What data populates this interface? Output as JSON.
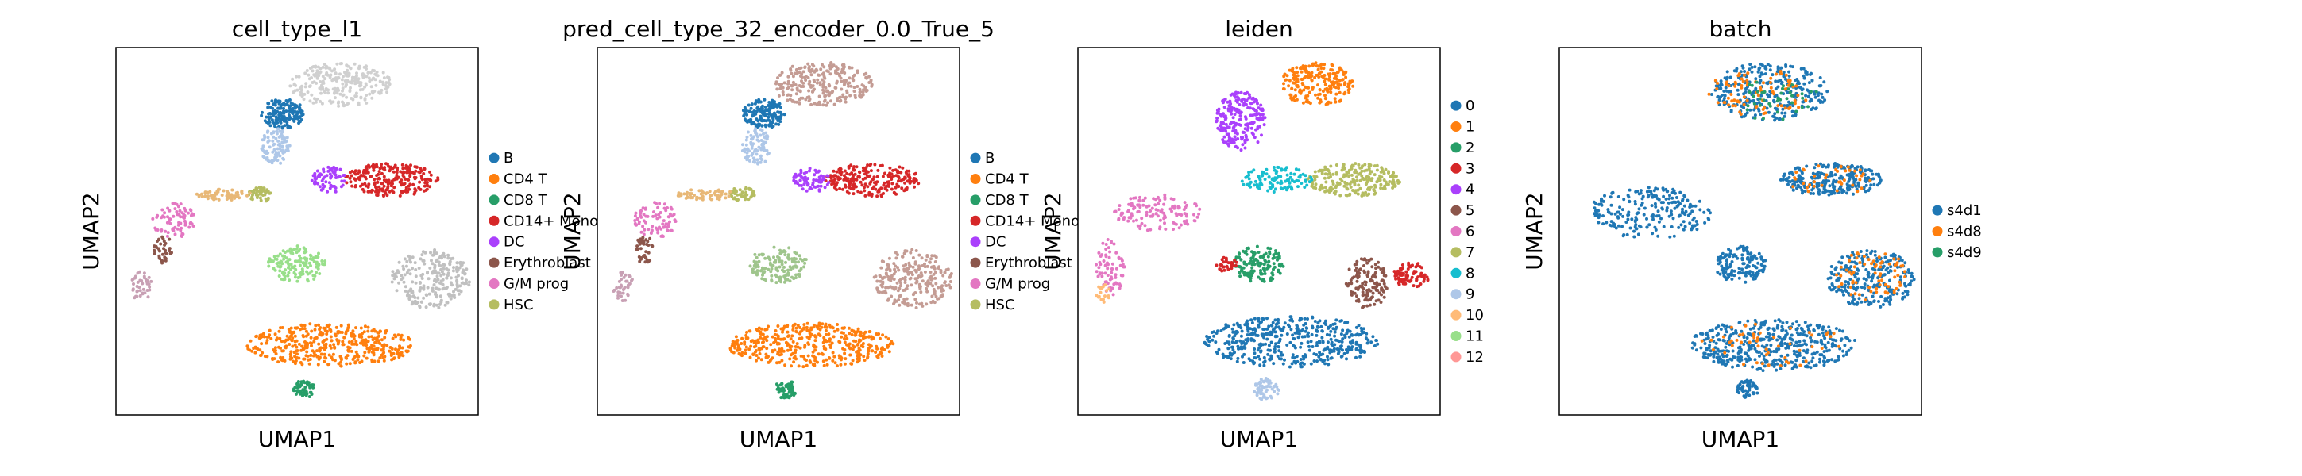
{
  "chart_data": [
    {
      "type": "scatter",
      "title": "cell_type_l1",
      "xlabel": "UMAP1",
      "ylabel": "UMAP2",
      "legend_position": "right",
      "legend": [
        {
          "label": "B",
          "color": "#1f77b4"
        },
        {
          "label": "CD4 T",
          "color": "#ff7f0e"
        },
        {
          "label": "CD8 T",
          "color": "#279e68"
        },
        {
          "label": "CD14+ Mono",
          "color": "#d62728"
        },
        {
          "label": "DC",
          "color": "#aa40fc"
        },
        {
          "label": "Erythroblast",
          "color": "#8c564b"
        },
        {
          "label": "G/M prog",
          "color": "#e377c2"
        },
        {
          "label": "HSC",
          "color": "#b5bd61"
        }
      ],
      "regions": [
        {
          "color": "#d0d0d0",
          "cx": 0.62,
          "cy": 0.1,
          "rx": 0.14,
          "ry": 0.06,
          "n": 260
        },
        {
          "color": "#1f77b4",
          "cx": 0.46,
          "cy": 0.18,
          "rx": 0.06,
          "ry": 0.04,
          "n": 160
        },
        {
          "color": "#aec7e8",
          "cx": 0.44,
          "cy": 0.27,
          "rx": 0.04,
          "ry": 0.05,
          "n": 90
        },
        {
          "color": "#d62728",
          "cx": 0.76,
          "cy": 0.36,
          "rx": 0.13,
          "ry": 0.045,
          "n": 230
        },
        {
          "color": "#aa40fc",
          "cx": 0.59,
          "cy": 0.36,
          "rx": 0.05,
          "ry": 0.035,
          "n": 70
        },
        {
          "color": "#b5bd61",
          "cx": 0.4,
          "cy": 0.4,
          "rx": 0.035,
          "ry": 0.02,
          "n": 50
        },
        {
          "color": "#e8b877",
          "cx": 0.3,
          "cy": 0.4,
          "rx": 0.08,
          "ry": 0.015,
          "n": 60
        },
        {
          "color": "#e377c2",
          "cx": 0.16,
          "cy": 0.47,
          "rx": 0.06,
          "ry": 0.05,
          "n": 80
        },
        {
          "color": "#8c564b",
          "cx": 0.13,
          "cy": 0.55,
          "rx": 0.025,
          "ry": 0.04,
          "n": 40
        },
        {
          "color": "#c8a0b4",
          "cx": 0.07,
          "cy": 0.65,
          "rx": 0.03,
          "ry": 0.04,
          "n": 40
        },
        {
          "color": "#98df8a",
          "cx": 0.5,
          "cy": 0.59,
          "rx": 0.08,
          "ry": 0.05,
          "n": 140
        },
        {
          "color": "#c0c0c0",
          "cx": 0.87,
          "cy": 0.63,
          "rx": 0.11,
          "ry": 0.08,
          "n": 240
        },
        {
          "color": "#ff7f0e",
          "cx": 0.59,
          "cy": 0.81,
          "rx": 0.23,
          "ry": 0.06,
          "n": 420
        },
        {
          "color": "#279e68",
          "cx": 0.52,
          "cy": 0.93,
          "rx": 0.03,
          "ry": 0.025,
          "n": 60
        }
      ]
    },
    {
      "type": "scatter",
      "title": "pred_cell_type_32_encoder_0.0_True_5",
      "xlabel": "UMAP1",
      "ylabel": "UMAP2",
      "legend_position": "right",
      "legend": [
        {
          "label": "B",
          "color": "#1f77b4"
        },
        {
          "label": "CD4 T",
          "color": "#ff7f0e"
        },
        {
          "label": "CD8 T",
          "color": "#279e68"
        },
        {
          "label": "CD14+ Mono",
          "color": "#d62728"
        },
        {
          "label": "DC",
          "color": "#aa40fc"
        },
        {
          "label": "Erythroblast",
          "color": "#8c564b"
        },
        {
          "label": "G/M prog",
          "color": "#e377c2"
        },
        {
          "label": "HSC",
          "color": "#b5bd61"
        }
      ],
      "regions": [
        {
          "color": "#c49c94",
          "cx": 0.62,
          "cy": 0.1,
          "rx": 0.14,
          "ry": 0.06,
          "n": 260
        },
        {
          "color": "#1f77b4",
          "cx": 0.46,
          "cy": 0.18,
          "rx": 0.06,
          "ry": 0.04,
          "n": 160
        },
        {
          "color": "#aec7e8",
          "cx": 0.44,
          "cy": 0.27,
          "rx": 0.04,
          "ry": 0.05,
          "n": 90
        },
        {
          "color": "#d62728",
          "cx": 0.76,
          "cy": 0.36,
          "rx": 0.13,
          "ry": 0.045,
          "n": 230
        },
        {
          "color": "#aa40fc",
          "cx": 0.59,
          "cy": 0.36,
          "rx": 0.05,
          "ry": 0.035,
          "n": 70
        },
        {
          "color": "#b5bd61",
          "cx": 0.4,
          "cy": 0.4,
          "rx": 0.035,
          "ry": 0.02,
          "n": 50
        },
        {
          "color": "#e8b877",
          "cx": 0.3,
          "cy": 0.4,
          "rx": 0.08,
          "ry": 0.015,
          "n": 60
        },
        {
          "color": "#e377c2",
          "cx": 0.16,
          "cy": 0.47,
          "rx": 0.06,
          "ry": 0.05,
          "n": 80
        },
        {
          "color": "#8c564b",
          "cx": 0.13,
          "cy": 0.55,
          "rx": 0.025,
          "ry": 0.04,
          "n": 40
        },
        {
          "color": "#c8a0b4",
          "cx": 0.07,
          "cy": 0.65,
          "rx": 0.03,
          "ry": 0.04,
          "n": 40
        },
        {
          "color": "#9fc58c",
          "cx": 0.5,
          "cy": 0.59,
          "rx": 0.08,
          "ry": 0.05,
          "n": 140
        },
        {
          "color": "#c49c94",
          "cx": 0.87,
          "cy": 0.63,
          "rx": 0.11,
          "ry": 0.08,
          "n": 240
        },
        {
          "color": "#ff7f0e",
          "cx": 0.59,
          "cy": 0.81,
          "rx": 0.23,
          "ry": 0.06,
          "n": 420
        },
        {
          "color": "#279e68",
          "cx": 0.52,
          "cy": 0.93,
          "rx": 0.03,
          "ry": 0.025,
          "n": 60
        }
      ]
    },
    {
      "type": "scatter",
      "title": "leiden",
      "xlabel": "UMAP1",
      "ylabel": "UMAP2",
      "legend_position": "right",
      "legend": [
        {
          "label": "0",
          "color": "#1f77b4"
        },
        {
          "label": "1",
          "color": "#ff7f0e"
        },
        {
          "label": "2",
          "color": "#279e68"
        },
        {
          "label": "3",
          "color": "#d62728"
        },
        {
          "label": "4",
          "color": "#aa40fc"
        },
        {
          "label": "5",
          "color": "#8c564b"
        },
        {
          "label": "6",
          "color": "#e377c2"
        },
        {
          "label": "7",
          "color": "#b5bd61"
        },
        {
          "label": "8",
          "color": "#17becf"
        },
        {
          "label": "9",
          "color": "#aec7e8"
        },
        {
          "label": "10",
          "color": "#ffbb78"
        },
        {
          "label": "11",
          "color": "#98df8a"
        },
        {
          "label": "12",
          "color": "#ff9896"
        }
      ],
      "regions": [
        {
          "color": "#ff7f0e",
          "cx": 0.66,
          "cy": 0.1,
          "rx": 0.1,
          "ry": 0.06,
          "n": 220
        },
        {
          "color": "#aa40fc",
          "cx": 0.45,
          "cy": 0.2,
          "rx": 0.07,
          "ry": 0.08,
          "n": 220
        },
        {
          "color": "#b5bd61",
          "cx": 0.76,
          "cy": 0.36,
          "rx": 0.13,
          "ry": 0.045,
          "n": 230
        },
        {
          "color": "#17becf",
          "cx": 0.55,
          "cy": 0.36,
          "rx": 0.1,
          "ry": 0.035,
          "n": 110
        },
        {
          "color": "#e377c2",
          "cx": 0.22,
          "cy": 0.45,
          "rx": 0.12,
          "ry": 0.05,
          "n": 130
        },
        {
          "color": "#e377c2",
          "cx": 0.09,
          "cy": 0.6,
          "rx": 0.04,
          "ry": 0.08,
          "n": 70
        },
        {
          "color": "#ffbb78",
          "cx": 0.07,
          "cy": 0.67,
          "rx": 0.02,
          "ry": 0.025,
          "n": 20
        },
        {
          "color": "#279e68",
          "cx": 0.5,
          "cy": 0.59,
          "rx": 0.07,
          "ry": 0.05,
          "n": 140
        },
        {
          "color": "#d62728",
          "cx": 0.41,
          "cy": 0.59,
          "rx": 0.03,
          "ry": 0.02,
          "n": 30
        },
        {
          "color": "#8c564b",
          "cx": 0.8,
          "cy": 0.64,
          "rx": 0.06,
          "ry": 0.07,
          "n": 130
        },
        {
          "color": "#d62728",
          "cx": 0.92,
          "cy": 0.62,
          "rx": 0.05,
          "ry": 0.035,
          "n": 90
        },
        {
          "color": "#1f77b4",
          "cx": 0.59,
          "cy": 0.8,
          "rx": 0.24,
          "ry": 0.07,
          "n": 460
        },
        {
          "color": "#aec7e8",
          "cx": 0.52,
          "cy": 0.93,
          "rx": 0.035,
          "ry": 0.03,
          "n": 60
        }
      ]
    },
    {
      "type": "scatter",
      "title": "batch",
      "xlabel": "UMAP1",
      "ylabel": "UMAP2",
      "legend_position": "right",
      "legend": [
        {
          "label": "s4d1",
          "color": "#1f77b4"
        },
        {
          "label": "s4d8",
          "color": "#ff7f0e"
        },
        {
          "label": "s4d9",
          "color": "#279e68"
        }
      ],
      "regions": [
        {
          "color": "#1f77b4",
          "cx": 0.58,
          "cy": 0.12,
          "rx": 0.16,
          "ry": 0.08,
          "n": 300
        },
        {
          "color": "#ff7f0e",
          "cx": 0.55,
          "cy": 0.12,
          "rx": 0.14,
          "ry": 0.07,
          "n": 80
        },
        {
          "color": "#279e68",
          "cx": 0.6,
          "cy": 0.14,
          "rx": 0.12,
          "ry": 0.06,
          "n": 40
        },
        {
          "color": "#1f77b4",
          "cx": 0.75,
          "cy": 0.36,
          "rx": 0.14,
          "ry": 0.045,
          "n": 250
        },
        {
          "color": "#ff7f0e",
          "cx": 0.75,
          "cy": 0.36,
          "rx": 0.12,
          "ry": 0.04,
          "n": 40
        },
        {
          "color": "#1f77b4",
          "cx": 0.25,
          "cy": 0.45,
          "rx": 0.17,
          "ry": 0.07,
          "n": 220
        },
        {
          "color": "#1f77b4",
          "cx": 0.5,
          "cy": 0.59,
          "rx": 0.07,
          "ry": 0.05,
          "n": 140
        },
        {
          "color": "#1f77b4",
          "cx": 0.86,
          "cy": 0.63,
          "rx": 0.12,
          "ry": 0.08,
          "n": 240
        },
        {
          "color": "#ff7f0e",
          "cx": 0.86,
          "cy": 0.62,
          "rx": 0.1,
          "ry": 0.07,
          "n": 70
        },
        {
          "color": "#1f77b4",
          "cx": 0.59,
          "cy": 0.81,
          "rx": 0.23,
          "ry": 0.07,
          "n": 440
        },
        {
          "color": "#ff7f0e",
          "cx": 0.59,
          "cy": 0.81,
          "rx": 0.2,
          "ry": 0.06,
          "n": 50
        },
        {
          "color": "#1f77b4",
          "cx": 0.52,
          "cy": 0.93,
          "rx": 0.03,
          "ry": 0.025,
          "n": 50
        }
      ]
    }
  ]
}
